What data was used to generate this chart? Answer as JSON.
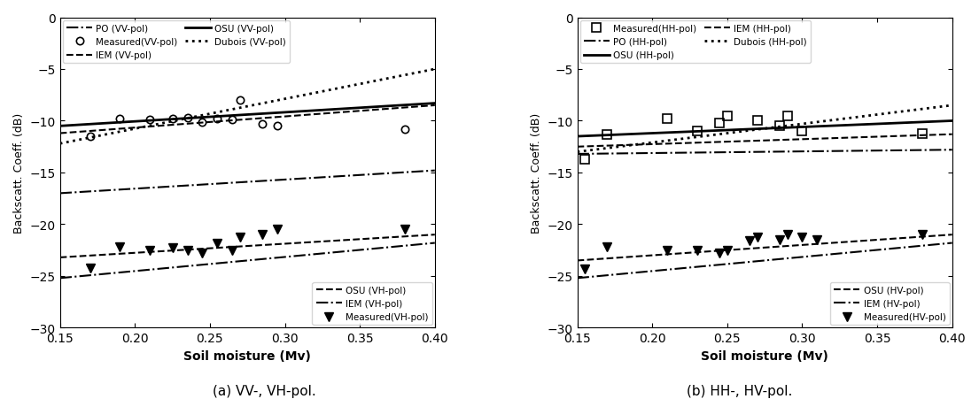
{
  "xlim": [
    0.15,
    0.4
  ],
  "ylim": [
    -30,
    0
  ],
  "yticks": [
    0,
    -5,
    -10,
    -15,
    -20,
    -25,
    -30
  ],
  "xticks": [
    0.15,
    0.2,
    0.25,
    0.3,
    0.35,
    0.4
  ],
  "xlabel": "Soil moisture (Mv)",
  "ylabel": "Backscatt. Coeff. (dB)",
  "subtitle_a": "(a) VV-, VH-pol.",
  "subtitle_b": "(b) HH-, HV-pol.",
  "panel_a": {
    "PO_VV": {
      "x": [
        0.15,
        0.4
      ],
      "y": [
        -17.0,
        -14.8
      ]
    },
    "IEM_VV": {
      "x": [
        0.15,
        0.4
      ],
      "y": [
        -11.2,
        -8.5
      ]
    },
    "Dubois_VV": {
      "x": [
        0.15,
        0.4
      ],
      "y": [
        -12.2,
        -5.0
      ]
    },
    "OSU_VV": {
      "x": [
        0.15,
        0.4
      ],
      "y": [
        -10.5,
        -8.3
      ]
    },
    "Measured_VV_x": [
      0.17,
      0.19,
      0.21,
      0.225,
      0.235,
      0.245,
      0.255,
      0.265,
      0.27,
      0.285,
      0.295,
      0.38
    ],
    "Measured_VV_y": [
      -11.5,
      -9.8,
      -9.9,
      -9.8,
      -9.7,
      -10.1,
      -9.8,
      -9.9,
      -8.0,
      -10.3,
      -10.5,
      -10.8
    ],
    "OSU_VH": {
      "x": [
        0.15,
        0.4
      ],
      "y": [
        -23.2,
        -21.0
      ]
    },
    "IEM_VH": {
      "x": [
        0.15,
        0.4
      ],
      "y": [
        -25.2,
        -21.8
      ]
    },
    "Measured_VH_x": [
      0.17,
      0.19,
      0.21,
      0.225,
      0.235,
      0.245,
      0.255,
      0.265,
      0.27,
      0.285,
      0.295,
      0.38
    ],
    "Measured_VH_y": [
      -24.2,
      -22.2,
      -22.5,
      -22.3,
      -22.5,
      -22.8,
      -21.8,
      -22.5,
      -21.2,
      -21.0,
      -20.5,
      -20.5
    ]
  },
  "panel_b": {
    "PO_HH": {
      "x": [
        0.15,
        0.4
      ],
      "y": [
        -13.2,
        -12.8
      ]
    },
    "IEM_HH": {
      "x": [
        0.15,
        0.4
      ],
      "y": [
        -12.5,
        -11.3
      ]
    },
    "Dubois_HH": {
      "x": [
        0.15,
        0.4
      ],
      "y": [
        -13.0,
        -8.5
      ]
    },
    "OSU_HH": {
      "x": [
        0.15,
        0.4
      ],
      "y": [
        -11.5,
        -10.0
      ]
    },
    "Measured_HH_x": [
      0.155,
      0.17,
      0.21,
      0.23,
      0.245,
      0.25,
      0.27,
      0.285,
      0.29,
      0.3,
      0.38
    ],
    "Measured_HH_y": [
      -13.7,
      -11.3,
      -9.8,
      -11.0,
      -10.2,
      -9.5,
      -10.0,
      -10.5,
      -9.5,
      -11.0,
      -11.2
    ],
    "OSU_HV": {
      "x": [
        0.15,
        0.4
      ],
      "y": [
        -23.5,
        -21.0
      ]
    },
    "IEM_HV": {
      "x": [
        0.15,
        0.4
      ],
      "y": [
        -25.2,
        -21.8
      ]
    },
    "Measured_HV_x": [
      0.155,
      0.17,
      0.21,
      0.23,
      0.245,
      0.25,
      0.265,
      0.27,
      0.285,
      0.29,
      0.3,
      0.31,
      0.38
    ],
    "Measured_HV_y": [
      -24.3,
      -22.2,
      -22.5,
      -22.5,
      -22.8,
      -22.5,
      -21.6,
      -21.2,
      -21.5,
      -21.0,
      -21.2,
      -21.5,
      -21.0
    ]
  }
}
